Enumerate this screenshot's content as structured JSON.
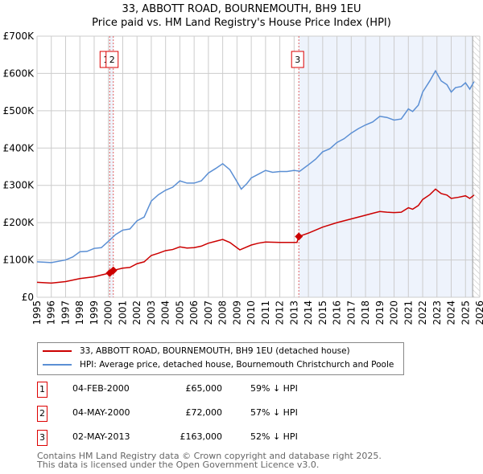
{
  "header": {
    "title": "33, ABBOTT ROAD, BOURNEMOUTH, BH9 1EU",
    "subtitle": "Price paid vs. HM Land Registry's House Price Index (HPI)"
  },
  "chart_data": {
    "type": "line",
    "title": "33, ABBOTT ROAD, BOURNEMOUTH, BH9 1EU",
    "subtitle": "Price paid vs. HM Land Registry's House Price Index (HPI)",
    "xlim": [
      1995,
      2026
    ],
    "ylim": [
      0,
      700000
    ],
    "x_ticks": [
      "1995",
      "1996",
      "1997",
      "1998",
      "1999",
      "2000",
      "2001",
      "2002",
      "2003",
      "2004",
      "2005",
      "2006",
      "2007",
      "2008",
      "2009",
      "2010",
      "2011",
      "2012",
      "2013",
      "2014",
      "2015",
      "2016",
      "2017",
      "2018",
      "2019",
      "2020",
      "2021",
      "2022",
      "2023",
      "2024",
      "2025",
      "2026"
    ],
    "y_ticks": [
      {
        "v": 0,
        "label": "£0"
      },
      {
        "v": 100000,
        "label": "£100K"
      },
      {
        "v": 200000,
        "label": "£200K"
      },
      {
        "v": 300000,
        "label": "£300K"
      },
      {
        "v": 400000,
        "label": "£400K"
      },
      {
        "v": 500000,
        "label": "£500K"
      },
      {
        "v": 600000,
        "label": "£600K"
      },
      {
        "v": 700000,
        "label": "£700K"
      }
    ],
    "grid": true,
    "shaded_range": [
      2013.33,
      2025.5
    ],
    "hatched_range": [
      2025.5,
      2026
    ],
    "series": [
      {
        "name": "33, ABBOTT ROAD, BOURNEMOUTH, BH9 1EU (detached house)",
        "color": "#cc0000",
        "x": [
          1995,
          1996,
          1997,
          1998,
          1999,
          2000.09,
          2000.34,
          2001,
          2001.5,
          2002,
          2002.5,
          2003,
          2003.5,
          2004,
          2004.5,
          2005,
          2005.5,
          2006,
          2006.5,
          2007,
          2007.5,
          2008,
          2008.5,
          2009.2,
          2010,
          2010.5,
          2011,
          2012,
          2013.2,
          2013.33,
          2014,
          2014.5,
          2015,
          2016,
          2017,
          2018,
          2018.5,
          2019,
          2019.5,
          2020,
          2020.5,
          2021,
          2021.3,
          2021.7,
          2022,
          2022.5,
          2022.9,
          2023.3,
          2023.7,
          2024,
          2024.5,
          2025,
          2025.3,
          2025.6
        ],
        "y": [
          40000,
          38000,
          42000,
          50000,
          55000,
          65000,
          72000,
          78000,
          80000,
          90000,
          95000,
          112000,
          118000,
          125000,
          128000,
          135000,
          132000,
          133000,
          137000,
          145000,
          150000,
          155000,
          147000,
          127000,
          140000,
          145000,
          148000,
          147000,
          147000,
          163000,
          172000,
          180000,
          188000,
          200000,
          210000,
          220000,
          225000,
          230000,
          228000,
          227000,
          228000,
          240000,
          236000,
          246000,
          262000,
          275000,
          290000,
          278000,
          274000,
          265000,
          268000,
          272000,
          265000,
          274000
        ]
      },
      {
        "name": "HPI: Average price, detached house, Bournemouth Christchurch and Poole",
        "color": "#5b8fd4",
        "x": [
          1995,
          1996,
          1997,
          1997.5,
          1998,
          1998.5,
          1999,
          1999.5,
          2000,
          2000.5,
          2001,
          2001.5,
          2002,
          2002.5,
          2003,
          2003.5,
          2004,
          2004.5,
          2005,
          2005.5,
          2006,
          2006.5,
          2007,
          2007.5,
          2008,
          2008.5,
          2009,
          2009.3,
          2009.7,
          2010,
          2010.5,
          2011,
          2011.5,
          2012,
          2012.5,
          2013,
          2013.4,
          2014,
          2014.5,
          2015,
          2015.5,
          2016,
          2016.5,
          2017,
          2017.5,
          2018,
          2018.5,
          2019,
          2019.5,
          2020,
          2020.5,
          2021,
          2021.3,
          2021.7,
          2022,
          2022.5,
          2022.9,
          2023.3,
          2023.7,
          2024,
          2024.3,
          2024.7,
          2025,
          2025.3,
          2025.6
        ],
        "y": [
          95000,
          93000,
          100000,
          108000,
          122000,
          123000,
          131000,
          133000,
          150000,
          168000,
          180000,
          183000,
          205000,
          215000,
          258000,
          275000,
          287000,
          295000,
          312000,
          306000,
          306000,
          312000,
          333000,
          345000,
          358000,
          342000,
          310000,
          290000,
          305000,
          320000,
          330000,
          340000,
          335000,
          337000,
          337000,
          340000,
          338000,
          355000,
          370000,
          390000,
          398000,
          415000,
          425000,
          440000,
          452000,
          462000,
          470000,
          485000,
          482000,
          475000,
          478000,
          505000,
          498000,
          515000,
          550000,
          580000,
          607000,
          580000,
          570000,
          550000,
          562000,
          565000,
          575000,
          558000,
          578000
        ]
      }
    ],
    "transactions": [
      {
        "id": "1",
        "date": "04-FEB-2000",
        "x": 2000.09,
        "price": "£65,000",
        "value": 65000,
        "hpi": "59% ↓ HPI"
      },
      {
        "id": "2",
        "date": "04-MAY-2000",
        "x": 2000.34,
        "price": "£72,000",
        "value": 72000,
        "hpi": "57% ↓ HPI"
      },
      {
        "id": "3",
        "date": "02-MAY-2013",
        "x": 2013.33,
        "price": "£163,000",
        "value": 163000,
        "hpi": "52% ↓ HPI"
      }
    ],
    "legend_placement": "below"
  },
  "legend": {
    "items": [
      "33, ABBOTT ROAD, BOURNEMOUTH, BH9 1EU (detached house)",
      "HPI: Average price, detached house, Bournemouth Christchurch and Poole"
    ]
  },
  "footer": {
    "line1": "Contains HM Land Registry data © Crown copyright and database right 2025.",
    "line2": "This data is licensed under the Open Government Licence v3.0."
  }
}
